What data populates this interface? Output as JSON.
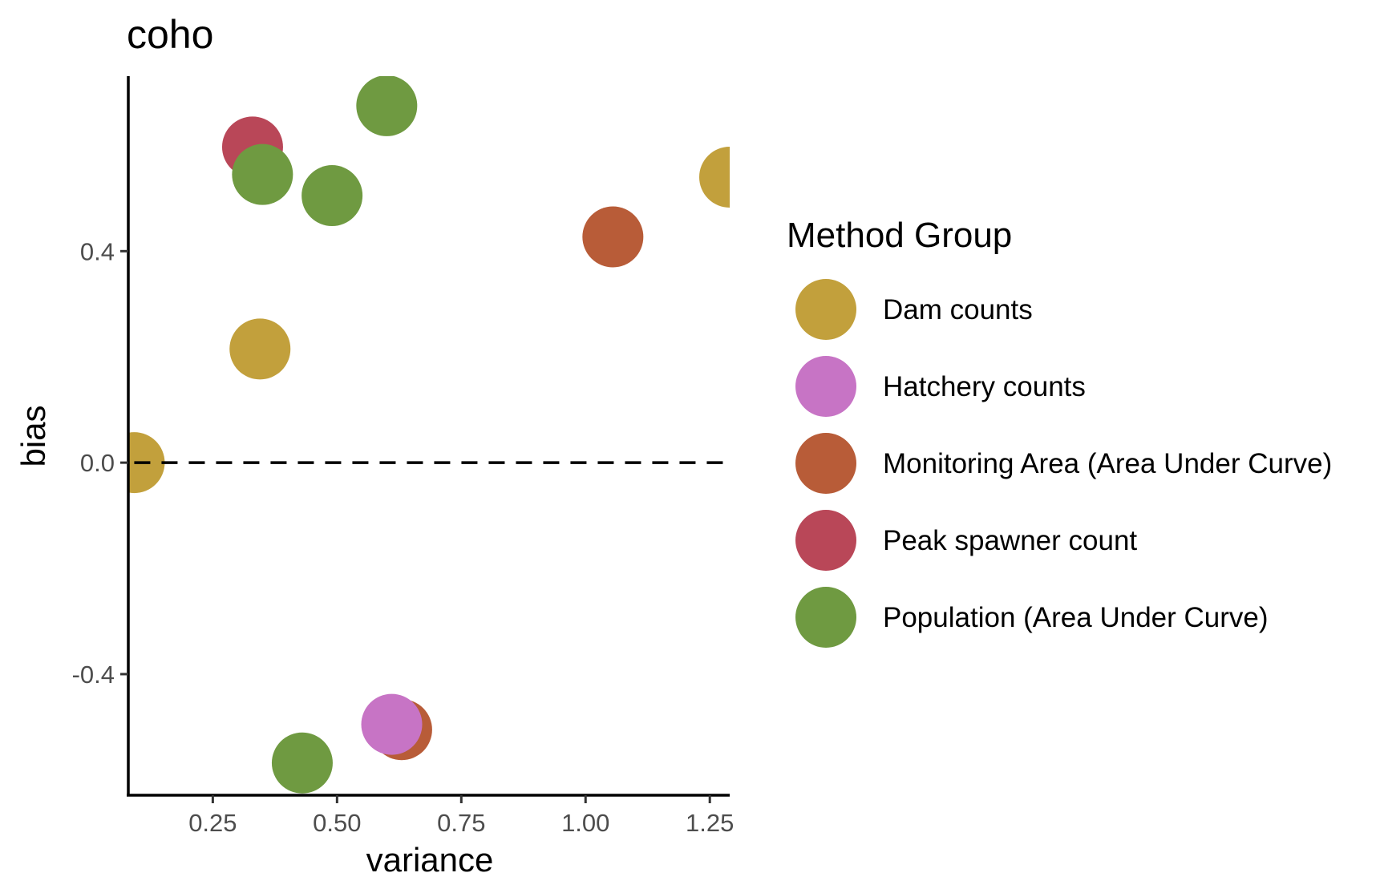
{
  "chart_data": {
    "type": "scatter",
    "title": "coho",
    "xlabel": "variance",
    "ylabel": "bias",
    "xlim": [
      0.08,
      1.29
    ],
    "ylim": [
      -0.629,
      0.731
    ],
    "x_ticks": [
      0.25,
      0.5,
      0.75,
      1.0,
      1.25
    ],
    "x_tick_labels": [
      "0.25",
      "0.50",
      "0.75",
      "1.00",
      "1.25"
    ],
    "y_ticks": [
      -0.4,
      0.0,
      0.4
    ],
    "y_tick_labels": [
      "-0.4",
      "0.0",
      "0.4"
    ],
    "reference_line": {
      "y": 0,
      "style": "dashed"
    },
    "grid": false,
    "legend": {
      "title": "Method Group",
      "position": "right",
      "entries": [
        "Dam counts",
        "Hatchery counts",
        "Monitoring Area (Area Under Curve)",
        "Peak spawner count",
        "Population (Area Under Curve)"
      ]
    },
    "colors": {
      "Dam counts": "#C2A03C",
      "Hatchery counts": "#C774C5",
      "Monitoring Area (Area Under Curve)": "#B85C38",
      "Peak spawner count": "#B94758",
      "Population (Area Under Curve)": "#6F9A41"
    },
    "series": [
      {
        "name": "Dam counts",
        "points": [
          {
            "x": 1.29,
            "y": 0.54
          },
          {
            "x": 0.345,
            "y": 0.215
          },
          {
            "x": 0.092,
            "y": 0.0
          }
        ]
      },
      {
        "name": "Hatchery counts",
        "points": [
          {
            "x": 0.61,
            "y": -0.495
          }
        ]
      },
      {
        "name": "Monitoring Area (Area Under Curve)",
        "points": [
          {
            "x": 1.055,
            "y": 0.427
          },
          {
            "x": 0.63,
            "y": -0.505
          }
        ]
      },
      {
        "name": "Peak spawner count",
        "points": [
          {
            "x": 0.33,
            "y": 0.597
          }
        ]
      },
      {
        "name": "Population (Area Under Curve)",
        "points": [
          {
            "x": 0.6,
            "y": 0.675
          },
          {
            "x": 0.35,
            "y": 0.545
          },
          {
            "x": 0.49,
            "y": 0.505
          },
          {
            "x": 0.43,
            "y": -0.568
          }
        ]
      }
    ],
    "draw_order": [
      [
        "Dam counts",
        0
      ],
      [
        "Dam counts",
        1
      ],
      [
        "Dam counts",
        2
      ],
      [
        "Monitoring Area (Area Under Curve)",
        0
      ],
      [
        "Monitoring Area (Area Under Curve)",
        1
      ],
      [
        "Hatchery counts",
        0
      ],
      [
        "Peak spawner count",
        0
      ],
      [
        "Population (Area Under Curve)",
        0
      ],
      [
        "Population (Area Under Curve)",
        1
      ],
      [
        "Population (Area Under Curve)",
        2
      ],
      [
        "Population (Area Under Curve)",
        3
      ]
    ]
  }
}
